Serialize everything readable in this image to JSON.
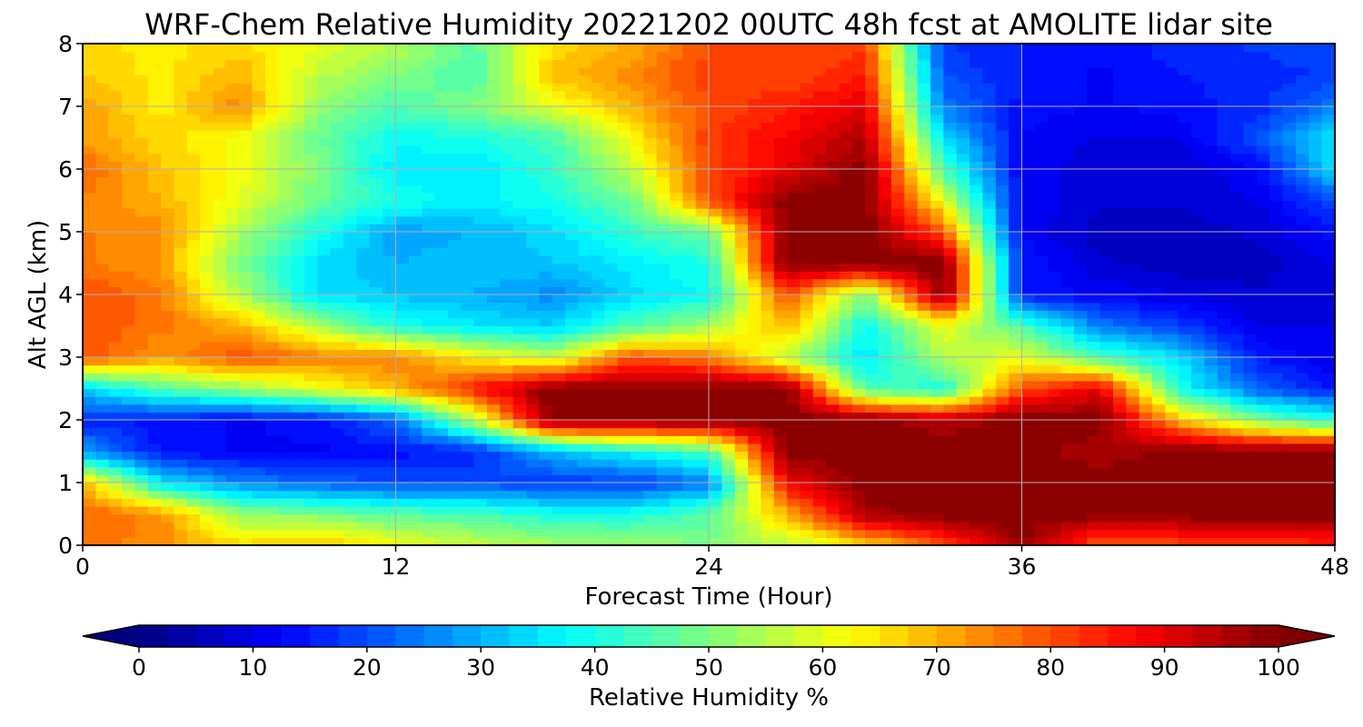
{
  "title": "WRF-Chem Relative Humidity 20221202 00UTC 48h fcst at AMOLITE lidar site",
  "chart_data": {
    "type": "heatmap",
    "title": "WRF-Chem Relative Humidity 20221202 00UTC 48h fcst at AMOLITE lidar site",
    "xlabel": "Forecast Time (Hour)",
    "ylabel": "Alt AGL (km)",
    "xlim": [
      0,
      48
    ],
    "ylim": [
      0,
      8
    ],
    "xticks": [
      "0",
      "12",
      "24",
      "36",
      "48"
    ],
    "yticks": [
      "0",
      "1",
      "2",
      "3",
      "4",
      "5",
      "6",
      "7",
      "8"
    ],
    "grid": true,
    "colormap": "jet",
    "colorbar": {
      "label": "Relative Humidity %",
      "min": 0,
      "max": 100,
      "ticks": [
        "0",
        "10",
        "20",
        "30",
        "40",
        "50",
        "60",
        "70",
        "80",
        "90",
        "100"
      ],
      "extend": "both",
      "orientation": "horizontal"
    },
    "x": [
      0,
      3,
      6,
      9,
      12,
      15,
      18,
      21,
      24,
      27,
      30,
      33,
      36,
      39,
      42,
      45,
      48
    ],
    "y": [
      0,
      0.5,
      1,
      1.5,
      2,
      2.5,
      3,
      3.5,
      4,
      4.5,
      5,
      5.5,
      6,
      6.5,
      7,
      7.5,
      8
    ],
    "values": [
      [
        76,
        74,
        66,
        70,
        62,
        57,
        54,
        53,
        50,
        55,
        65,
        80,
        98,
        78,
        80,
        80,
        84
      ],
      [
        78,
        74,
        52,
        50,
        46,
        45,
        40,
        40,
        46,
        70,
        96,
        100,
        100,
        100,
        100,
        100,
        100
      ],
      [
        70,
        35,
        26,
        22,
        20,
        20,
        18,
        18,
        25,
        88,
        100,
        100,
        100,
        100,
        100,
        100,
        100
      ],
      [
        28,
        14,
        12,
        12,
        14,
        16,
        30,
        38,
        45,
        100,
        100,
        100,
        100,
        95,
        100,
        100,
        100
      ],
      [
        16,
        14,
        12,
        14,
        22,
        55,
        100,
        100,
        100,
        100,
        100,
        95,
        100,
        100,
        70,
        50,
        40
      ],
      [
        33,
        45,
        52,
        60,
        70,
        85,
        100,
        100,
        100,
        100,
        45,
        40,
        80,
        90,
        40,
        22,
        15
      ],
      [
        80,
        72,
        80,
        75,
        75,
        64,
        57,
        80,
        75,
        55,
        35,
        55,
        60,
        45,
        35,
        15,
        10
      ],
      [
        80,
        76,
        70,
        55,
        40,
        36,
        33,
        45,
        54,
        70,
        38,
        60,
        45,
        25,
        18,
        10,
        10
      ],
      [
        80,
        76,
        55,
        35,
        32,
        30,
        26,
        34,
        38,
        80,
        50,
        100,
        15,
        12,
        10,
        8,
        10
      ],
      [
        76,
        72,
        50,
        34,
        30,
        32,
        32,
        36,
        40,
        100,
        100,
        100,
        15,
        8,
        6,
        6,
        10
      ],
      [
        75,
        74,
        54,
        40,
        28,
        30,
        34,
        42,
        48,
        100,
        100,
        80,
        12,
        6,
        6,
        8,
        14
      ],
      [
        75,
        70,
        60,
        48,
        40,
        36,
        40,
        48,
        80,
        100,
        100,
        60,
        12,
        8,
        8,
        10,
        20
      ],
      [
        78,
        68,
        62,
        50,
        36,
        35,
        42,
        56,
        80,
        90,
        100,
        45,
        12,
        8,
        8,
        12,
        35
      ],
      [
        72,
        66,
        62,
        48,
        38,
        40,
        44,
        62,
        82,
        88,
        95,
        35,
        12,
        10,
        10,
        20,
        35
      ],
      [
        72,
        64,
        74,
        52,
        45,
        50,
        60,
        70,
        80,
        85,
        90,
        25,
        14,
        12,
        14,
        16,
        25
      ],
      [
        68,
        64,
        70,
        56,
        50,
        45,
        68,
        74,
        82,
        80,
        85,
        20,
        15,
        12,
        15,
        16,
        18
      ],
      [
        66,
        64,
        66,
        60,
        55,
        46,
        66,
        70,
        80,
        80,
        82,
        18,
        15,
        14,
        16,
        18,
        20
      ]
    ]
  }
}
